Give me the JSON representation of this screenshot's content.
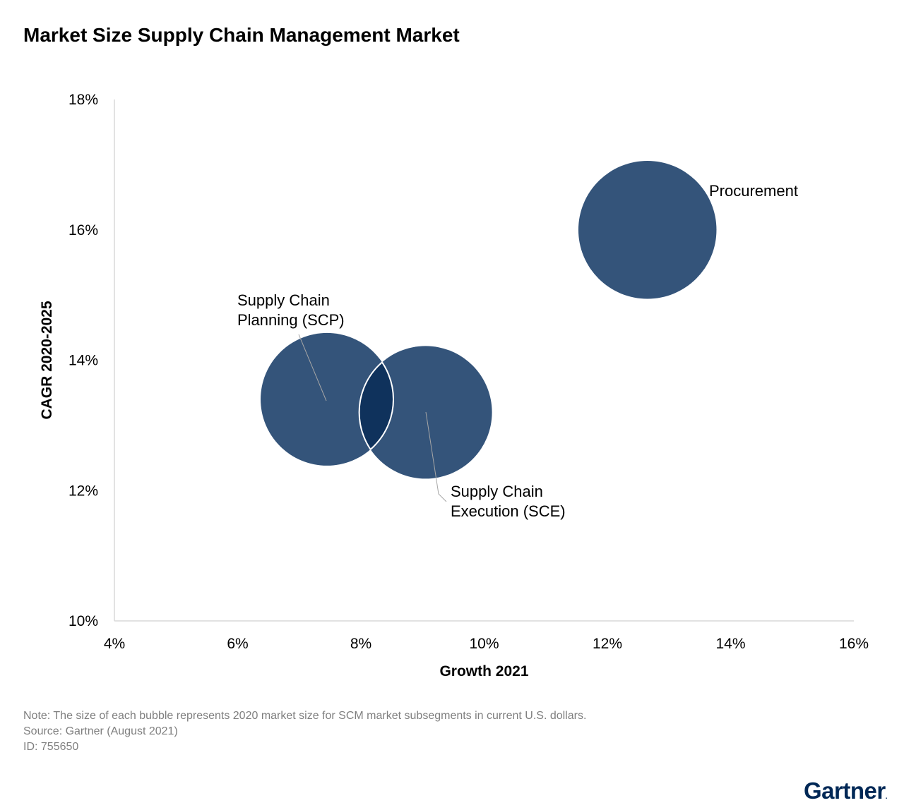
{
  "title": "Market Size Supply Chain Management Market",
  "chart_data": {
    "type": "bubble",
    "xlabel": "Growth 2021",
    "ylabel": "CAGR 2020-2025",
    "xlim": [
      4,
      16
    ],
    "ylim": [
      10,
      18
    ],
    "x_ticks": [
      "4%",
      "6%",
      "8%",
      "10%",
      "12%",
      "14%",
      "16%"
    ],
    "y_ticks": [
      "10%",
      "12%",
      "14%",
      "16%",
      "18%"
    ],
    "bubble_color": "#34547A",
    "overlap_color": "#0F325C",
    "series": [
      {
        "label_lines": [
          "Supply Chain",
          "Planning (SCP)"
        ],
        "x": 7.45,
        "y": 13.4,
        "relative_size": 1.0
      },
      {
        "label_lines": [
          "Supply Chain",
          "Execution (SCE)"
        ],
        "x": 9.05,
        "y": 13.2,
        "relative_size": 1.0
      },
      {
        "label_lines": [
          "Procurement"
        ],
        "x": 12.65,
        "y": 16.0,
        "relative_size": 1.04
      }
    ]
  },
  "footer": {
    "note": "Note: The size of each bubble represents 2020 market size for SCM market subsegments in current U.S. dollars.",
    "source": "Source: Gartner (August 2021)",
    "id": "ID: 755650"
  },
  "logo": {
    "text": "Gartner",
    "mark": "."
  }
}
